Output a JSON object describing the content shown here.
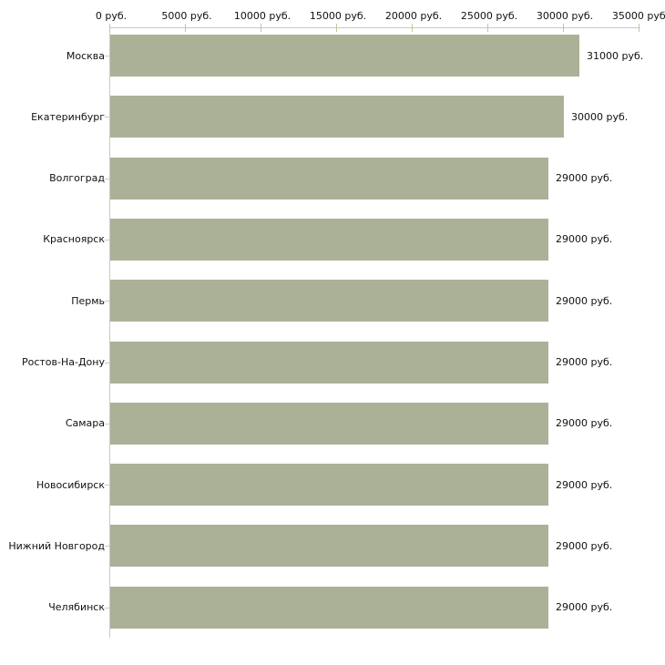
{
  "chart_data": {
    "type": "bar",
    "orientation": "horizontal",
    "title": "",
    "xlabel": "",
    "ylabel": "",
    "unit": "руб.",
    "categories": [
      "Москва",
      "Екатеринбург",
      "Волгоград",
      "Красноярск",
      "Пермь",
      "Ростов-На-Дону",
      "Самара",
      "Новосибирск",
      "Нижний Новгород",
      "Челябинск"
    ],
    "values": [
      31000,
      30000,
      29000,
      29000,
      29000,
      29000,
      29000,
      29000,
      29000,
      29000
    ],
    "value_labels": [
      "31000 руб.",
      "30000 руб.",
      "29000 руб.",
      "29000 руб.",
      "29000 руб.",
      "29000 руб.",
      "29000 руб.",
      "29000 руб.",
      "29000 руб.",
      "29000 руб."
    ],
    "x_axis": {
      "position": "top",
      "min": 0,
      "max": 35000,
      "tick_values": [
        0,
        5000,
        10000,
        15000,
        20000,
        25000,
        30000,
        35000
      ],
      "tick_labels": [
        "0 руб.",
        "5000 руб.",
        "10000 руб.",
        "15000 руб.",
        "20000 руб.",
        "25000 руб.",
        "30000 руб.",
        "35000 руб."
      ]
    },
    "grid": false,
    "legend": false,
    "colors": {
      "bar": "#abb197",
      "axis_line": "#c9c9c9",
      "axis_tick": "#c2c5a3",
      "category_tick": "#cacdbf",
      "text": "#111111",
      "background": "#ffffff"
    }
  }
}
